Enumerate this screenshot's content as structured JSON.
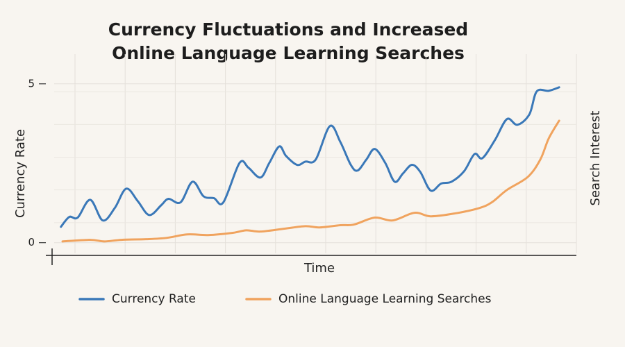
{
  "chart_data": {
    "type": "line",
    "title": "Currency Fluctuations and Increased Online Language Learning Searches",
    "xlabel": "Time",
    "ylabel": "Currency Rate",
    "y2label": "Search Interest",
    "xlim": [
      0,
      100
    ],
    "ylim": [
      -0.4,
      6
    ],
    "yticks": [
      0,
      5
    ],
    "grid": true,
    "legend": "bottom",
    "series": [
      {
        "name": "Currency Rate",
        "color": "#3a78b8",
        "x": [
          1.3,
          2.9,
          4.5,
          6.9,
          9.3,
          11.6,
          13.8,
          16.0,
          18.2,
          20.5,
          21.9,
          24.2,
          26.5,
          28.6,
          30.6,
          32.4,
          35.5,
          37.2,
          39.5,
          41.2,
          43.1,
          44.4,
          46.5,
          48.1,
          50.1,
          52.8,
          54.8,
          56.8,
          58.1,
          59.8,
          61.4,
          63.4,
          65.2,
          66.8,
          68.5,
          70.1,
          72.1,
          74.1,
          76.1,
          78.5,
          80.5,
          82.0,
          84.4,
          86.7,
          88.7,
          91.0,
          92.4,
          94.7,
          96.7
        ],
        "values": [
          0.5,
          0.81,
          0.79,
          1.35,
          0.7,
          1.09,
          1.7,
          1.31,
          0.87,
          1.18,
          1.38,
          1.27,
          1.92,
          1.46,
          1.4,
          1.27,
          2.51,
          2.36,
          2.05,
          2.51,
          3.03,
          2.73,
          2.45,
          2.55,
          2.62,
          3.67,
          3.17,
          2.45,
          2.27,
          2.62,
          2.95,
          2.51,
          1.92,
          2.18,
          2.45,
          2.23,
          1.64,
          1.86,
          1.92,
          2.25,
          2.79,
          2.66,
          3.23,
          3.89,
          3.71,
          4.04,
          4.76,
          4.78,
          4.89
        ]
      },
      {
        "name": "Online Language Learning Searches",
        "color": "#f0a35e",
        "x": [
          1.6,
          6.9,
          9.6,
          12.9,
          17.6,
          21.5,
          25.5,
          29.5,
          34.2,
          36.8,
          39.5,
          44.1,
          48.1,
          50.8,
          54.8,
          57.4,
          61.4,
          64.8,
          69.0,
          72.1,
          76.7,
          81.4,
          83.8,
          86.7,
          90.7,
          93.1,
          94.7,
          96.7
        ],
        "values": [
          0.04,
          0.09,
          0.04,
          0.09,
          0.11,
          0.15,
          0.26,
          0.24,
          0.31,
          0.39,
          0.35,
          0.44,
          0.52,
          0.48,
          0.55,
          0.57,
          0.79,
          0.7,
          0.94,
          0.83,
          0.92,
          1.09,
          1.27,
          1.66,
          2.07,
          2.62,
          3.28,
          3.84
        ]
      }
    ]
  }
}
